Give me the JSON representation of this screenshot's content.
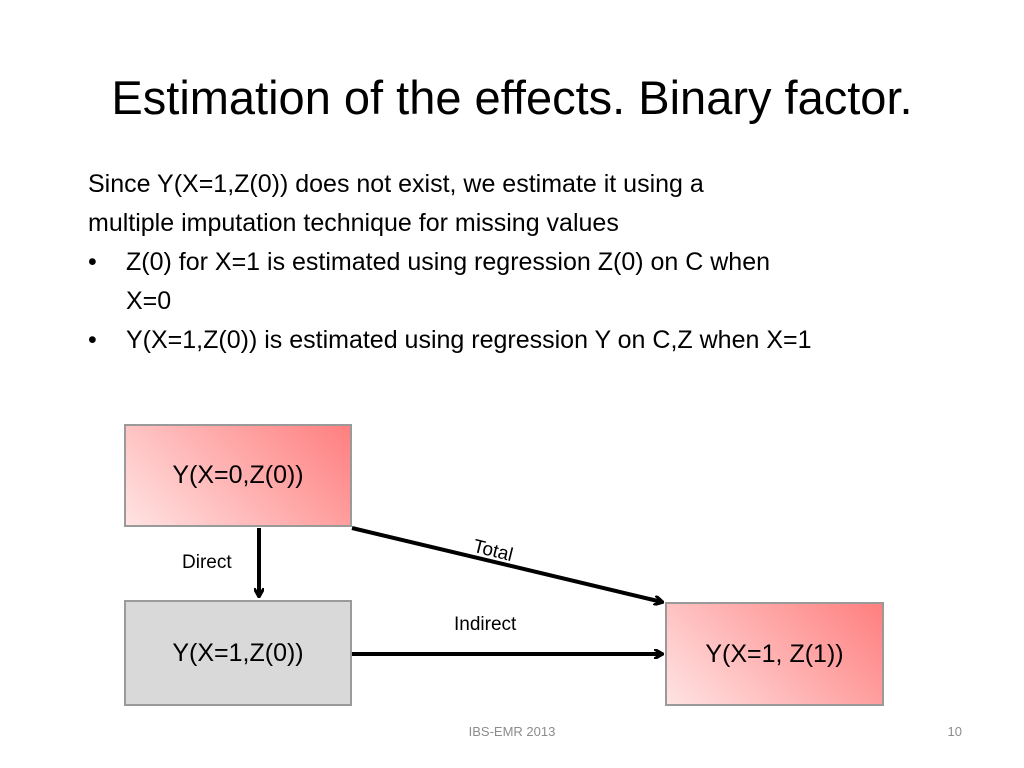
{
  "slide": {
    "title": "Estimation of the effects. Binary factor.",
    "intro_lines": [
      "Since Y(X=1,Z(0)) does not exist, we estimate it using a",
      "multiple imputation technique for missing values"
    ],
    "bullets": [
      {
        "marker": "•",
        "lines": [
          "Z(0) for X=1 is estimated using regression Z(0) on C when",
          "X=0"
        ]
      },
      {
        "marker": "•",
        "lines": [
          "Y(X=1,Z(0)) is estimated using regression Y on C,Z when X=1"
        ]
      }
    ]
  },
  "diagram": {
    "nodes": {
      "top": "Y(X=0,Z(0))",
      "bottom_left": "Y(X=1,Z(0))",
      "bottom_right": "Y(X=1, Z(1))"
    },
    "edges": {
      "direct": "Direct",
      "indirect": "Indirect",
      "total": "Total"
    },
    "colors": {
      "red_box_light": "#ffe3e3",
      "red_box_dark": "#ff7f7f",
      "grey_box": "#d9d9d9",
      "box_border": "#9a9a9a",
      "arrow": "#000000"
    }
  },
  "footer": {
    "text": "IBS-EMR 2013",
    "page_number": "10"
  }
}
